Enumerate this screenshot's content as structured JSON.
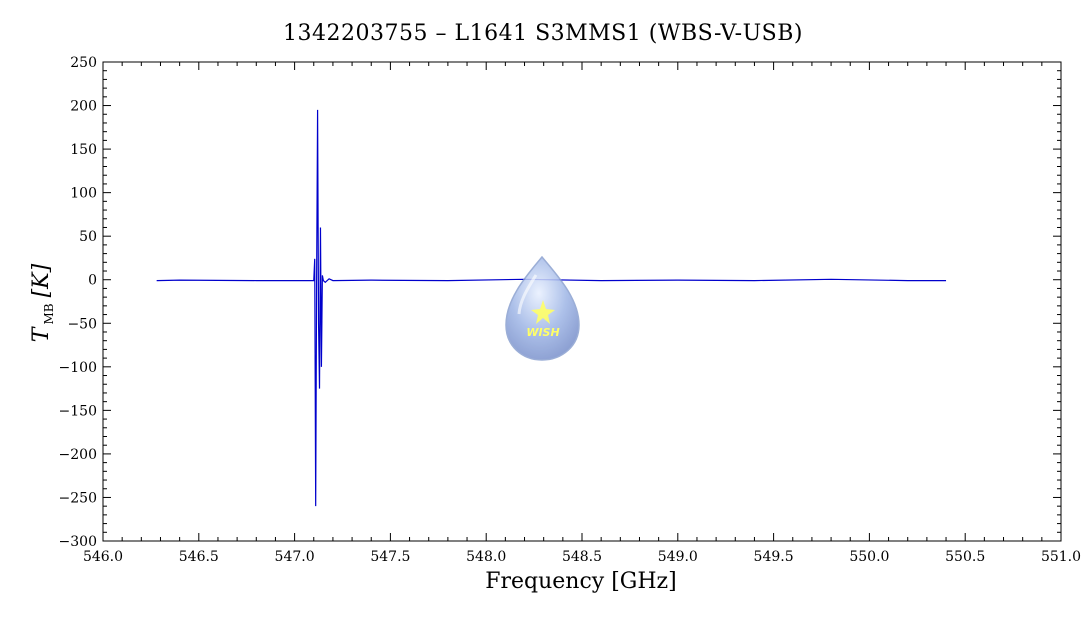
{
  "chart_data": {
    "type": "line",
    "title": "1342203755 – L1641 S3MMS1 (WBS-V-USB)",
    "xlabel": "Frequency [GHz]",
    "ylabel": {
      "symbol": "T",
      "subscript": "MB",
      "unit": "[K]"
    },
    "xlim": [
      546.0,
      551.0
    ],
    "ylim": [
      -300,
      250
    ],
    "xticks": [
      546.0,
      546.5,
      547.0,
      547.5,
      548.0,
      548.5,
      549.0,
      549.5,
      550.0,
      550.5,
      551.0
    ],
    "xtick_labels": [
      "546.0",
      "546.5",
      "547.0",
      "547.5",
      "548.0",
      "548.5",
      "549.0",
      "549.5",
      "550.0",
      "550.5",
      "551.0"
    ],
    "yticks": [
      -300,
      -250,
      -200,
      -150,
      -100,
      -50,
      0,
      50,
      100,
      150,
      200,
      250
    ],
    "ytick_labels": [
      "−300",
      "−250",
      "−200",
      "−150",
      "−100",
      "−50",
      "0",
      "50",
      "100",
      "150",
      "200",
      "250"
    ],
    "grid": false,
    "series": [
      {
        "color": "#0000cc",
        "x": [
          546.28,
          546.4,
          546.8,
          547.0,
          547.1,
          547.105,
          547.11,
          547.115,
          547.12,
          547.125,
          547.13,
          547.135,
          547.14,
          547.145,
          547.15,
          547.16,
          547.18,
          547.2,
          547.4,
          547.8,
          548.2,
          548.6,
          549.0,
          549.4,
          549.8,
          550.2,
          550.4
        ],
        "y": [
          -1,
          -0.5,
          -1,
          -1,
          -1,
          24,
          -260,
          2,
          195,
          -50,
          -125,
          60,
          -100,
          5,
          -1,
          -3,
          1,
          -1,
          -0.5,
          -1,
          0.5,
          -1,
          -0.5,
          -1,
          0.5,
          -1,
          -1
        ]
      }
    ]
  },
  "watermark": {
    "label": "WISH"
  }
}
